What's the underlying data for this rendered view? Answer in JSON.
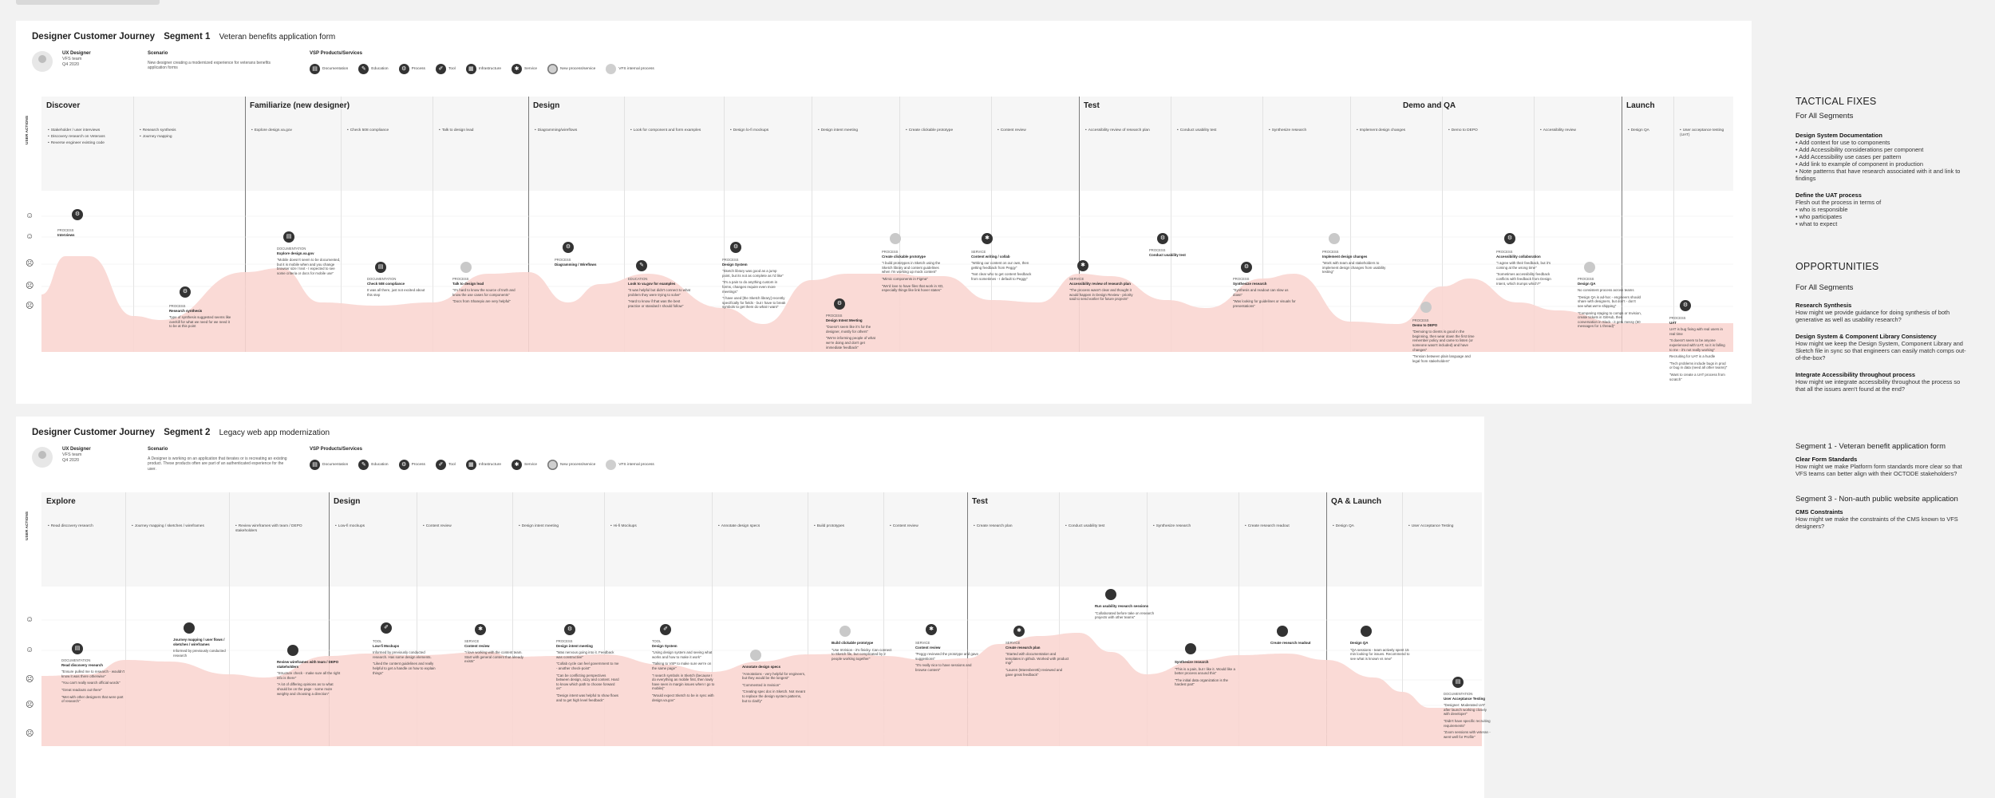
{
  "boards": [
    {
      "title": "Designer Customer Journey",
      "segment": "Segment 1",
      "subtitle": "Veteran benefits application form",
      "persona": {
        "role": "UX Designer",
        "team": "VFS team",
        "date": "Q4 2020"
      },
      "scenario_label": "Scenario",
      "scenario_text": "New designer creating a modernized experience for veterans benefits application forms",
      "vsp_label": "VSP Products/Services",
      "legend": [
        {
          "icon": "documentation-icon",
          "label": "Documentation"
        },
        {
          "icon": "education-icon",
          "label": "Education"
        },
        {
          "icon": "process-icon",
          "label": "Process"
        },
        {
          "icon": "tool-icon",
          "label": "Tool"
        },
        {
          "icon": "infrastructure-icon",
          "label": "Infrastructure"
        },
        {
          "icon": "service-icon",
          "label": "Service"
        },
        {
          "icon": "new-process-icon",
          "label": "New process/service"
        },
        {
          "icon": "vfs-internal-icon",
          "label": "VFS internal process"
        }
      ],
      "user_actions_label": "USER ACTIONS",
      "phases": [
        {
          "name": "Discover"
        },
        {
          "name": "Familiarize (new designer)"
        },
        {
          "name": "Design"
        },
        {
          "name": "Test"
        },
        {
          "name": "Demo and QA"
        },
        {
          "name": "Launch"
        }
      ],
      "columns": [
        {
          "actions": [
            "Stakeholder / user interviews",
            "Discovery research on Veterans",
            "Reverse engineer existing code"
          ]
        },
        {
          "actions": [
            "Research synthesis",
            "Journey mapping"
          ]
        },
        {
          "actions": [
            "Explore design.va.gov"
          ]
        },
        {
          "actions": [
            "Check 508 compliance"
          ]
        },
        {
          "actions": [
            "Talk to design lead"
          ]
        },
        {
          "actions": [
            "Diagramming/wireflows"
          ]
        },
        {
          "actions": [
            "Look for component and form examples"
          ]
        },
        {
          "actions": [
            "Design lo-fi mockups"
          ]
        },
        {
          "actions": [
            "Design intent meeting"
          ]
        },
        {
          "actions": [
            "Create clickable prototype"
          ]
        },
        {
          "actions": [
            "Content review"
          ]
        },
        {
          "actions": [
            "Accessibility review of research plan"
          ]
        },
        {
          "actions": [
            "Conduct usability test"
          ]
        },
        {
          "actions": [
            "Synthesize research"
          ]
        },
        {
          "actions": [
            "Implement design changes"
          ]
        },
        {
          "actions": [
            "Demo to DEPO"
          ]
        },
        {
          "actions": [
            "Accessibility review"
          ]
        },
        {
          "actions": [
            "Design QA"
          ]
        },
        {
          "actions": [
            "User acceptance testing (UAT)"
          ]
        }
      ],
      "touchpoints": [
        {
          "type": "PROCESS",
          "name": "Interviews",
          "quotes": []
        },
        {
          "type": "PROCESS",
          "name": "Research synthesis",
          "quotes": [
            "Type of synthesis suggested seems like overkill for what we need for we need it to be at this point"
          ]
        },
        {
          "type": "DOCUMENTATION",
          "name": "Explore design.va.gov",
          "quotes": [
            "\"Mobile doesn't seem to be documented, but it is mobile when and you change browser size / text - I expected to see some criteria or docs for mobile use\""
          ]
        },
        {
          "type": "DOCUMENTATION",
          "name": "Check 508 compliance",
          "quotes": [
            "It was all there, just not excited about this step"
          ]
        },
        {
          "type": "PROCESS",
          "name": "Talk to design lead",
          "quotes": [
            "\"It's hard to know the source of truth and know the use cases for components\"",
            "\"Docs from Sharepix are very helpful\""
          ]
        },
        {
          "type": "PROCESS",
          "name": "Diagramming / Wireflows",
          "quotes": []
        },
        {
          "type": "EDUCATION",
          "name": "Look to va.gov for examples",
          "quotes": [
            "\"It was helpful but didn't connect to what problem they were trying to solve\"",
            "\"Hard to know if that was the best practice or standard I should follow\""
          ]
        },
        {
          "type": "PROCESS",
          "name": "Design System",
          "quotes": [
            "\"Sketch library was good as a jump point, but its not as complete as I'd like\"",
            "\"It's a pain to do anything custom in forms, changes require even more meetings\"",
            "\"I have used [the Sketch library] recently specifically for fields - but I have to break symbols to get them do what I want\""
          ]
        },
        {
          "type": "PROCESS",
          "name": "Design Intent Meeting",
          "quotes": [
            "\"Doesn't seem like it's for the designer, mostly for others\"",
            "\"We're informing people of what we're doing and don't get immediate feedback\""
          ]
        },
        {
          "type": "PROCESS",
          "name": "Create clickable prototype",
          "quotes": [
            "\"I build prototypes in Sketch using the Sketch library and content guidelines when I'm working up mock content\"",
            "\"Mimic components in Figma\"",
            "\"We'd love to have files that work in XD, especially things like link hover states\""
          ]
        },
        {
          "type": "SERVICE",
          "name": "Content writing / collab",
          "quotes": [
            "\"Writing our content on our own, then getting feedback from Peggy\"",
            "\"Not clear who to get content feedback from sometimes - I default to Peggy\""
          ]
        },
        {
          "type": "SERVICE",
          "name": "Accessibility review of research plan",
          "quotes": [
            "\"The process wasn't clear and thought it would happen in Design Review - priority said to send earlier for future projects\""
          ]
        },
        {
          "type": "PROCESS",
          "name": "Conduct usability test",
          "quotes": []
        },
        {
          "type": "PROCESS",
          "name": "Synthesize research",
          "quotes": [
            "\"Synthesis and readout can slow us down\"",
            "\"Was looking for guidelines or visuals for presentations\""
          ]
        },
        {
          "type": "PROCESS",
          "name": "Implement design changes",
          "quotes": [
            "\"Work with team and stakeholders to implement design changes from usability testing\""
          ]
        },
        {
          "type": "PROCESS",
          "name": "Demo to DEPO",
          "quotes": [
            "\"Demoing to clients is good in the beginning, then wear down the first time remember policy and came to listen (or someone wasn't included) and have changes\"",
            "\"Tension between plain language and legal from stakeholders\""
          ]
        },
        {
          "type": "PROCESS",
          "name": "Accessibility collaboration",
          "quotes": [
            "\"I agree with their feedback, but it's coming at the wrong time\"",
            "\"Sometimes accessibility feedback conflicts with feedback from Design Intent, which trumps which?\""
          ]
        },
        {
          "type": "PROCESS",
          "name": "Design QA",
          "quotes": [
            "No consistent process across teams",
            "\"Design QA is ad-hoc - engineers should share with designers, but don't - don't see what we're shipping\"",
            "\"Comparing staging to comps or Invision, create tickets in GitHub, then conversation in Slack - it gets messy (60 messages for 1 thread)\""
          ]
        },
        {
          "type": "PROCESS",
          "name": "UAT",
          "quotes": [
            "UAT is bug fixing with real users in real time",
            "\"It doesn't seem to be anyone experienced with UAT, so it is falling to me - it's not really working\"",
            "Recruiting for UAT is a hurdle",
            "\"Tech problems include bugs in prod or bug in data (need all other teams)\"",
            "\"Want to create a UAT process from scratch\""
          ]
        }
      ]
    },
    {
      "title": "Designer Customer Journey",
      "segment": "Segment 2",
      "subtitle": "Legacy web app modernization",
      "persona": {
        "role": "UX Designer",
        "team": "VFS team",
        "date": "Q4 2020"
      },
      "scenario_label": "Scenario",
      "scenario_text": "A Designer is working on an application that iterates or is recreating an existing product. These products often are part of an authenticated experience for the user.",
      "vsp_label": "VSP Products/Services",
      "legend": [
        {
          "icon": "documentation-icon",
          "label": "Documentation"
        },
        {
          "icon": "education-icon",
          "label": "Education"
        },
        {
          "icon": "process-icon",
          "label": "Process"
        },
        {
          "icon": "tool-icon",
          "label": "Tool"
        },
        {
          "icon": "infrastructure-icon",
          "label": "Infrastructure"
        },
        {
          "icon": "service-icon",
          "label": "Service"
        },
        {
          "icon": "new-process-icon",
          "label": "New process/service"
        },
        {
          "icon": "vfs-internal-icon",
          "label": "VFS internal process"
        }
      ],
      "user_actions_label": "USER ACTIONS",
      "phases": [
        {
          "name": "Explore"
        },
        {
          "name": "Design"
        },
        {
          "name": "Test"
        },
        {
          "name": "QA & Launch"
        }
      ],
      "columns": [
        {
          "actions": [
            "Read discovery research"
          ]
        },
        {
          "actions": [
            "Journey mapping / sketches / wireframes"
          ]
        },
        {
          "actions": [
            "Review wireframes with team / DEPO stakeholders"
          ]
        },
        {
          "actions": [
            "Low-fi mockups"
          ]
        },
        {
          "actions": [
            "Content review"
          ]
        },
        {
          "actions": [
            "Design intent meeting"
          ]
        },
        {
          "actions": [
            "Hi-fi Mockups"
          ]
        },
        {
          "actions": [
            "Annotate design specs"
          ]
        },
        {
          "actions": [
            "Build prototypes"
          ]
        },
        {
          "actions": [
            "Content review"
          ]
        },
        {
          "actions": [
            "Create research plan"
          ]
        },
        {
          "actions": [
            "Conduct usability test"
          ]
        },
        {
          "actions": [
            "Synthesize research"
          ]
        },
        {
          "actions": [
            "Create research readout"
          ]
        },
        {
          "actions": [
            "Design QA"
          ]
        },
        {
          "actions": [
            "User Acceptance Testing"
          ]
        }
      ],
      "touchpoints": [
        {
          "type": "DOCUMENTATION",
          "name": "Read discovery research",
          "quotes": [
            "\"Ensure pulled me to research - wouldn't know it was there otherwise\"",
            "\"You can't really search official words\"",
            "\"Great readouts out there\"",
            "\"Met with other designers that were part of research\""
          ]
        },
        {
          "type": "",
          "name": "Journey mapping / user flows / sketches / wireframes",
          "quotes": [
            "Informed by previously conducted research"
          ]
        },
        {
          "type": "",
          "name": "Review wireframes with team / DEPO stakeholders",
          "quotes": [
            "\"Structure check - make sure all the right info is there\"",
            "\"A lot of differing opinions as to what should be on the page - some more weighty and choosing a direction\""
          ]
        },
        {
          "type": "TOOL",
          "name": "Low-fi Mockups",
          "quotes": [
            "Informed by previously conducted research. Has some design elements.",
            "\"Liked the content guidelines and really helpful to get a handle on how to explain things\""
          ]
        },
        {
          "type": "SERVICE",
          "name": "Content review",
          "quotes": [
            "\"I love working with the content team. Start with general content that already exists\""
          ]
        },
        {
          "type": "PROCESS",
          "name": "Design intent meeting",
          "quotes": [
            "\"Was nervous going into it. Feedback was constructive\"",
            "\"Collab cycle can feel government to me - another check-point\"",
            "\"Can be conflicting perspectives between design, a11y and content. Hard to know which path to choose forward on\"",
            "\"Design intent was helpful to show flows and to get high level feedback\""
          ]
        },
        {
          "type": "TOOL",
          "name": "Design System",
          "quotes": [
            "\"Using design system and seeing what works and how to make it work\"",
            "\"Talking to VSP to make sure we're on the same page\"",
            "\"I search symbols in Sketch (because I do everything as mobile first, then lowly have seen in margin issues when I go to mobile)\"",
            "\"Would expect Sketch to be in sync with design.va.gov\""
          ]
        },
        {
          "type": "",
          "name": "Annotate design specs",
          "quotes": [
            "\"Annotations - very helpful for engineers, but they would be the longest\"",
            "\"Commented in Invision\"",
            "\"Creating spec doc in Sketch. Not meant to replace the design system patterns, but to clarify\""
          ]
        },
        {
          "type": "",
          "name": "Build clickable prototype",
          "quotes": [
            "\"Use InVision - it's finicky. Can connect to Sketch file, but complicated by 2 people working together\""
          ]
        },
        {
          "type": "SERVICE",
          "name": "Content review",
          "quotes": [
            "\"Peggy reviewed the prototype and gave suggestions\"",
            "\"It's really nice to have sessions and browse content\""
          ]
        },
        {
          "type": "SERVICE",
          "name": "Create research plan",
          "quotes": [
            "\"Started with documentation and templates in github. Worked with product mgr\"",
            "\"Lauren (Maresberetti) reviewed and gave great feedback\""
          ]
        },
        {
          "type": "",
          "name": "Run usability research sessions",
          "quotes": [
            "\"Collaborated before take on research projects with other teams\""
          ]
        },
        {
          "type": "",
          "name": "Synthesize research",
          "quotes": [
            "\"This is a pain, but I like it. Would like a better process around this\"",
            "\"The initial data organization is the hardest part\""
          ]
        },
        {
          "type": "",
          "name": "Create research readout",
          "quotes": []
        },
        {
          "type": "",
          "name": "Design QA",
          "quotes": [
            "\"QA sessions - team actively spent 15 min looking for issues. Recommend to see what is known vs new\""
          ]
        },
        {
          "type": "DOCUMENTATION",
          "name": "User Acceptance Testing",
          "quotes": [
            "\"Designer: Moderated UAT after launch working closely with developer\"",
            "\"Didn't have specific recruiting requirements\"",
            "\"Zoom sessions with veteran - went well for Profile\""
          ]
        }
      ]
    }
  ],
  "side": {
    "tactical_title": "TACTICAL FIXES",
    "tactical_sub": "For All Segments",
    "tactical_items": [
      {
        "title": "Design System Documentation",
        "lines": [
          "• Add context for use to components",
          "• Add Accessibility considerations per component",
          "• Add Accessibility use cases per pattern",
          "• Add link to example of component in production",
          "• Note patterns that have research associated with it and link to findings"
        ]
      },
      {
        "title": "Define the UAT process",
        "lines": [
          "Flesh out the process in terms of",
          "• who is responsible",
          "• who participates",
          "• what to expect"
        ]
      }
    ],
    "opp_title": "OPPORTUNITIES",
    "opp_sub": "For All Segments",
    "opp_items": [
      {
        "title": "Research Synthesis",
        "text": "How might we provide guidance for doing synthesis of both generative as well as usability research?"
      },
      {
        "title": "Design System & Component Library Consistency",
        "text": "How might we keep the Design System, Component Library and Sketch file in sync so that engineers can easily match comps out-of-the-box?"
      },
      {
        "title": "Integrate Accessibility throughout process",
        "text": "How might we integrate accessibility throughout the process so that all the issues aren't found at the end?"
      }
    ],
    "seg1_title": "Segment 1 - Veteran benefit application form",
    "seg1_items": [
      {
        "title": "Clear Form Standards",
        "text": "How might we make Platform form standards more clear so that VFS teams can better align with their OCTODE stakeholders?"
      }
    ],
    "seg3_title": "Segment 3 - Non-auth public website application",
    "seg3_items": [
      {
        "title": "CMS Constraints",
        "text": "How might we make the constraints of the CMS known to VFS designers?"
      }
    ]
  }
}
